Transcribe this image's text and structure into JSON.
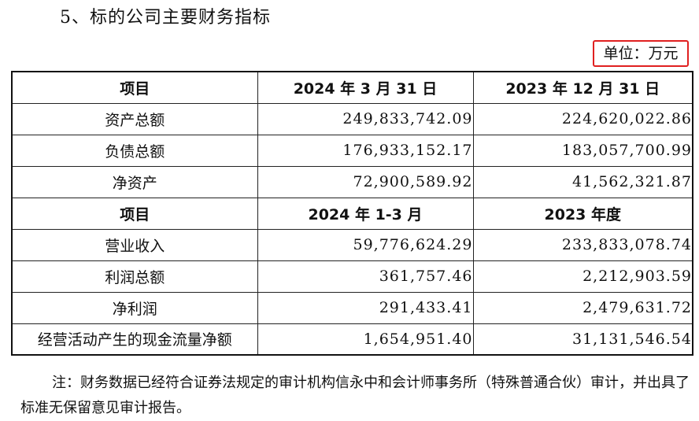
{
  "heading": "5、标的公司主要财务指标",
  "unit": "单位：万元",
  "table": {
    "header1": {
      "item": "项目",
      "col1": "2024 年 3 月 31 日",
      "col2": "2023 年 12 月 31 日"
    },
    "balance_rows": [
      {
        "label": "资产总额",
        "v1": "249,833,742.09",
        "v2": "224,620,022.86"
      },
      {
        "label": "负债总额",
        "v1": "176,933,152.17",
        "v2": "183,057,700.99"
      },
      {
        "label": "净资产",
        "v1": "72,900,589.92",
        "v2": "41,562,321.87"
      }
    ],
    "header2": {
      "item": "项目",
      "col1": "2024 年 1-3 月",
      "col2": "2023 年度"
    },
    "income_rows": [
      {
        "label": "营业收入",
        "v1": "59,776,624.29",
        "v2": "233,833,078.74"
      },
      {
        "label": "利润总额",
        "v1": "361,757.46",
        "v2": "2,212,903.59"
      },
      {
        "label": "净利润",
        "v1": "291,433.41",
        "v2": "2,479,631.72"
      },
      {
        "label": "经营活动产生的现金流量净额",
        "v1": "1,654,951.40",
        "v2": "31,131,546.54"
      }
    ]
  },
  "note": "注：财务数据已经符合证券法规定的审计机构信永中和会计师事务所（特殊普通合伙）审计，并出具了标准无保留意见审计报告。",
  "colors": {
    "unit_highlight": "#e02020"
  }
}
